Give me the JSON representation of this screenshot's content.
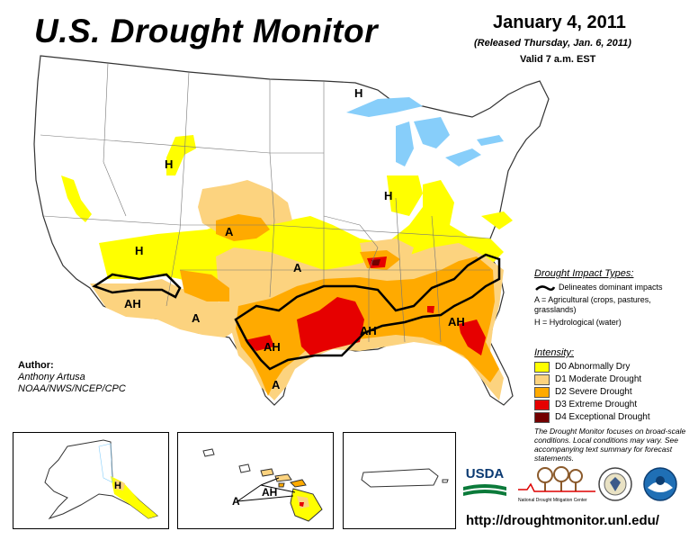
{
  "header": {
    "title": "U.S. Drought Monitor",
    "date": "January 4, 2011",
    "released": "(Released Thursday, Jan. 6, 2011)",
    "valid": "Valid 7 a.m. EST"
  },
  "author": {
    "heading": "Author:",
    "name": "Anthony Artusa",
    "org": "NOAA/NWS/NCEP/CPC"
  },
  "impact_legend": {
    "title": "Drought Impact Types:",
    "line_label": "Delineates dominant impacts",
    "agri": "A = Agricultural (crops, pastures, grasslands)",
    "hydro": "H = Hydrological (water)"
  },
  "intensity_legend": {
    "title": "Intensity:",
    "items": [
      {
        "label": "D0 Abnormally Dry",
        "color": "#ffff00"
      },
      {
        "label": "D1 Moderate Drought",
        "color": "#fcd37f"
      },
      {
        "label": "D2 Severe Drought",
        "color": "#ffaa00"
      },
      {
        "label": "D3 Extreme Drought",
        "color": "#e60000"
      },
      {
        "label": "D4 Exceptional Drought",
        "color": "#730000"
      }
    ]
  },
  "note": "The Drought Monitor focuses on broad-scale conditions. Local conditions may vary. See accompanying text summary for forecast statements.",
  "map_labels": {
    "h_michigan": "H",
    "h_montana": "H",
    "h_illinois": "H",
    "h_arizona": "H",
    "a_colorado": "A",
    "a_kansas": "A",
    "ah_arizona": "AH",
    "a_newmexico": "A",
    "ah_texas": "AH",
    "a_texas_south": "A",
    "ah_louisiana": "AH",
    "ah_georgia": "AH",
    "ah_hawaii": "AH",
    "a_hawaii": "A",
    "h_alaska": "H"
  },
  "logos": {
    "usda": "USDA",
    "ndmc": "National Drought Mitigation Center"
  },
  "url": "http://droughtmonitor.unl.edu/"
}
